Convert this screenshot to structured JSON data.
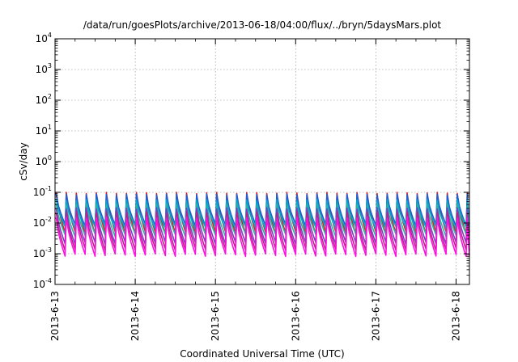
{
  "chart_data": {
    "type": "line",
    "title": "/data/run/goesPlots/archive/2013-06-18/04:00/flux/../bryn/5daysMars.plot",
    "xlabel": "Coordinated Universal Time (UTC)",
    "ylabel": "cSv/day",
    "y_scale": "log",
    "ylim": [
      0.0001,
      10000
    ],
    "xlim": [
      "2013-06-13T00:00",
      "2013-06-18T04:00"
    ],
    "grid": true,
    "y_ticks": [
      {
        "base": "10",
        "exp": "-4"
      },
      {
        "base": "10",
        "exp": "-3"
      },
      {
        "base": "10",
        "exp": "-2"
      },
      {
        "base": "10",
        "exp": "-1"
      },
      {
        "base": "10",
        "exp": "0"
      },
      {
        "base": "10",
        "exp": "1"
      },
      {
        "base": "10",
        "exp": "2"
      },
      {
        "base": "10",
        "exp": "3"
      },
      {
        "base": "10",
        "exp": "4"
      }
    ],
    "x_ticks": [
      "2013-6-13",
      "2013-6-14",
      "2013-6-15",
      "2013-6-16",
      "2013-6-17",
      "2013-6-18"
    ],
    "sawtooth_period_hours": 3,
    "series": [
      {
        "color": "#d62020",
        "peak": 0.095,
        "trough": 0.0048
      },
      {
        "color": "#1f5fd6",
        "peak": 0.085,
        "trough": 0.0085
      },
      {
        "color": "#00a8c8",
        "peak": 0.055,
        "trough": 0.007
      },
      {
        "color": "#2bb5a0",
        "peak": 0.04,
        "trough": 0.004
      },
      {
        "color": "#7a3fc8",
        "peak": 0.03,
        "trough": 0.0022
      },
      {
        "color": "#c0208a",
        "peak": 0.022,
        "trough": 0.0014
      },
      {
        "color": "#ff10e0",
        "peak": 0.015,
        "trough": 0.0009
      }
    ]
  }
}
